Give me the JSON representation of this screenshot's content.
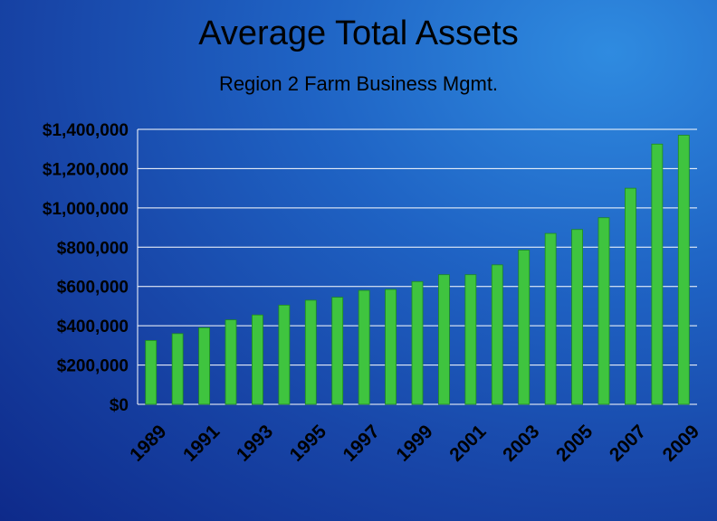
{
  "chart_data": {
    "type": "bar",
    "title": "Average Total Assets",
    "subtitle": "Region 2 Farm Business Mgmt.",
    "xlabel": "",
    "ylabel": "",
    "categories": [
      "1989",
      "1990",
      "1991",
      "1992",
      "1993",
      "1994",
      "1995",
      "1996",
      "1997",
      "1998",
      "1999",
      "2000",
      "2001",
      "2002",
      "2003",
      "2004",
      "2005",
      "2006",
      "2007",
      "2008",
      "2009"
    ],
    "x_tick_labels": [
      "1989",
      "1991",
      "1993",
      "1995",
      "1997",
      "1999",
      "2001",
      "2003",
      "2005",
      "2007",
      "2009"
    ],
    "values": [
      325000,
      360000,
      390000,
      430000,
      455000,
      505000,
      530000,
      545000,
      580000,
      585000,
      625000,
      660000,
      660000,
      710000,
      785000,
      870000,
      890000,
      950000,
      1100000,
      1325000,
      1370000
    ],
    "ylim": [
      0,
      1400000
    ],
    "y_tick_labels": [
      "$0",
      "$200,000",
      "$400,000",
      "$600,000",
      "$800,000",
      "$1,000,000",
      "$1,200,000",
      "$1,400,000"
    ],
    "y_tick_values": [
      0,
      200000,
      400000,
      600000,
      800000,
      1000000,
      1200000,
      1400000
    ],
    "grid": true,
    "colors": {
      "bar": "#3fc43f",
      "bar_edge": "#1e8a1e",
      "grid": "#ffffff",
      "text": "#000000"
    }
  }
}
